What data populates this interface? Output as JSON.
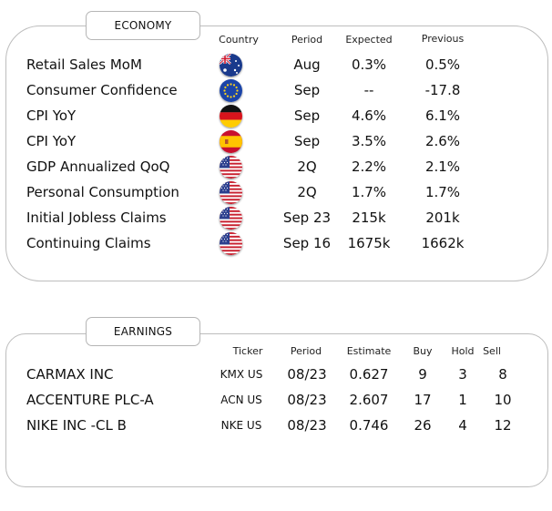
{
  "economy": {
    "tab_label": "ECONOMY",
    "headers": {
      "country": "Country",
      "period": "Period",
      "expected": "Expected",
      "previous": "Previous"
    },
    "rows": [
      {
        "event": "Retail Sales MoM",
        "country_icon": "australia-flag-icon",
        "period": "Aug",
        "expected": "0.3%",
        "previous": "0.5%"
      },
      {
        "event": "Consumer Confidence",
        "country_icon": "eurozone-flag-icon",
        "period": "Sep",
        "expected": "--",
        "previous": "-17.8"
      },
      {
        "event": "CPI YoY",
        "country_icon": "germany-flag-icon",
        "period": "Sep",
        "expected": "4.6%",
        "previous": "6.1%"
      },
      {
        "event": "CPI YoY",
        "country_icon": "spain-flag-icon",
        "period": "Sep",
        "expected": "3.5%",
        "previous": "2.6%"
      },
      {
        "event": "GDP Annualized QoQ",
        "country_icon": "usa-flag-icon",
        "period": "2Q",
        "expected": "2.2%",
        "previous": "2.1%"
      },
      {
        "event": "Personal Consumption",
        "country_icon": "usa-flag-icon",
        "period": "2Q",
        "expected": "1.7%",
        "previous": "1.7%"
      },
      {
        "event": "Initial Jobless Claims",
        "country_icon": "usa-flag-icon",
        "period": "Sep 23",
        "expected": "215k",
        "previous": "201k"
      },
      {
        "event": "Continuing Claims",
        "country_icon": "usa-flag-icon",
        "period": "Sep 16",
        "expected": "1675k",
        "previous": "1662k"
      }
    ]
  },
  "earnings": {
    "tab_label": "EARNINGS",
    "headers": {
      "ticker": "Ticker",
      "period": "Period",
      "estimate": "Estimate",
      "buy": "Buy",
      "hold": "Hold",
      "sell": "Sell"
    },
    "rows": [
      {
        "company": "CARMAX INC",
        "ticker": "KMX US",
        "period": "08/23",
        "estimate": "0.627",
        "buy": "9",
        "hold": "3",
        "sell": "8"
      },
      {
        "company": "ACCENTURE PLC-A",
        "ticker": "ACN US",
        "period": "08/23",
        "estimate": "2.607",
        "buy": "17",
        "hold": "1",
        "sell": "10"
      },
      {
        "company": "NIKE INC -CL B",
        "ticker": "NKE US",
        "period": "08/23",
        "estimate": "0.746",
        "buy": "26",
        "hold": "4",
        "sell": "12"
      }
    ]
  }
}
